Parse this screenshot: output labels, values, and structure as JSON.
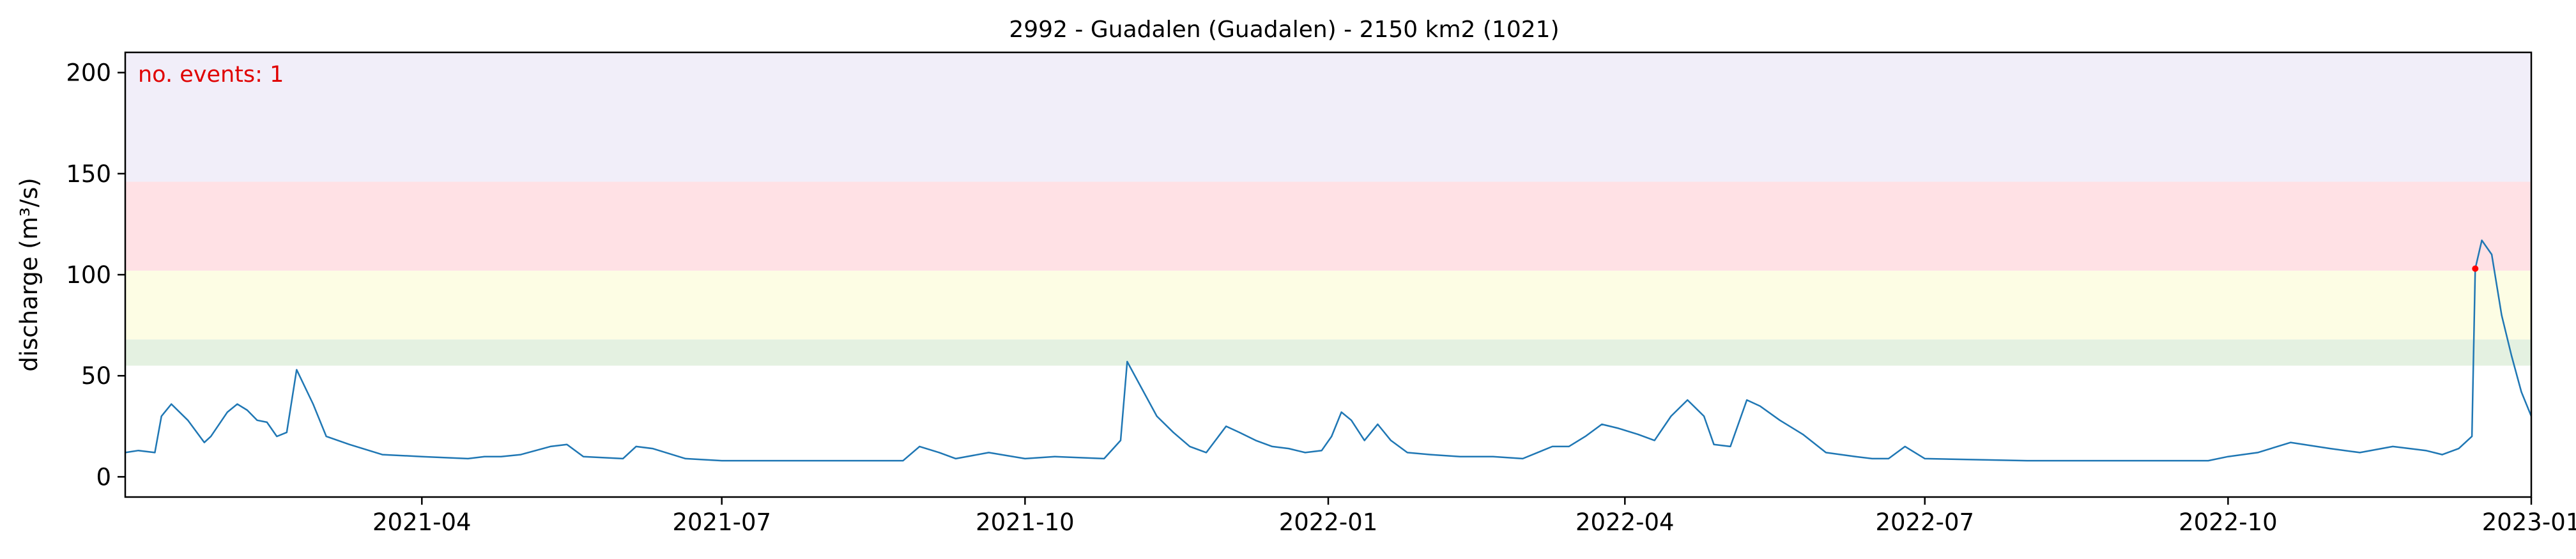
{
  "chart_data": {
    "type": "line",
    "title": "2992 - Guadalen (Guadalen) - 2150 km2 (1021)",
    "xlabel": "",
    "ylabel": "discharge (m³/s)",
    "x_range": [
      "2021-01-01",
      "2023-01-01"
    ],
    "ylim": [
      -10,
      210
    ],
    "yticks": [
      0,
      50,
      100,
      150,
      200
    ],
    "xticks": [
      "2021-04-01",
      "2021-07-01",
      "2021-10-01",
      "2022-01-01",
      "2022-04-01",
      "2022-07-01",
      "2022-10-01",
      "2023-01-01"
    ],
    "xtick_labels": [
      "2021-04",
      "2021-07",
      "2021-10",
      "2022-01",
      "2022-04",
      "2022-07",
      "2022-10",
      "2023-01"
    ],
    "grid": false,
    "annotation": "no. events: 1",
    "threshold_bands": [
      {
        "from": 55,
        "to": 68,
        "color": "#e4f1e1"
      },
      {
        "from": 68,
        "to": 102,
        "color": "#fdfde4"
      },
      {
        "from": 102,
        "to": 146,
        "color": "#ffe1e5"
      },
      {
        "from": 146,
        "to": 210,
        "color": "#f1eef9"
      }
    ],
    "line_color": "#1f77b4",
    "event_color": "#ff0000",
    "events": [
      {
        "x": "2022-12-15",
        "y": 103
      }
    ],
    "series": [
      {
        "x": [
          "2021-01-01",
          "2021-01-05",
          "2021-01-10",
          "2021-01-12",
          "2021-01-15",
          "2021-01-20",
          "2021-01-25",
          "2021-01-27",
          "2021-02-01",
          "2021-02-04",
          "2021-02-07",
          "2021-02-10",
          "2021-02-13",
          "2021-02-16",
          "2021-02-19",
          "2021-02-22",
          "2021-02-27",
          "2021-03-03",
          "2021-03-10",
          "2021-03-20",
          "2021-04-01",
          "2021-04-15",
          "2021-04-20",
          "2021-04-25",
          "2021-05-01",
          "2021-05-10",
          "2021-05-15",
          "2021-05-20",
          "2021-06-01",
          "2021-06-05",
          "2021-06-10",
          "2021-06-20",
          "2021-07-01",
          "2021-07-15",
          "2021-08-01",
          "2021-08-25",
          "2021-08-30",
          "2021-09-05",
          "2021-09-10",
          "2021-09-20",
          "2021-10-01",
          "2021-10-10",
          "2021-10-25",
          "2021-10-30",
          "2021-11-01",
          "2021-11-05",
          "2021-11-10",
          "2021-11-15",
          "2021-11-20",
          "2021-11-25",
          "2021-12-01",
          "2021-12-05",
          "2021-12-10",
          "2021-12-15",
          "2021-12-20",
          "2021-12-25",
          "2021-12-30",
          "2022-01-02",
          "2022-01-05",
          "2022-01-08",
          "2022-01-12",
          "2022-01-16",
          "2022-01-20",
          "2022-01-25",
          "2022-02-01",
          "2022-02-10",
          "2022-02-20",
          "2022-03-01",
          "2022-03-10",
          "2022-03-15",
          "2022-03-20",
          "2022-03-25",
          "2022-03-30",
          "2022-04-05",
          "2022-04-10",
          "2022-04-15",
          "2022-04-20",
          "2022-04-25",
          "2022-04-28",
          "2022-05-03",
          "2022-05-08",
          "2022-05-12",
          "2022-05-18",
          "2022-05-25",
          "2022-06-01",
          "2022-06-10",
          "2022-06-15",
          "2022-06-20",
          "2022-06-25",
          "2022-07-01",
          "2022-08-01",
          "2022-09-01",
          "2022-09-20",
          "2022-09-25",
          "2022-10-01",
          "2022-10-10",
          "2022-10-20",
          "2022-11-01",
          "2022-11-10",
          "2022-11-20",
          "2022-11-30",
          "2022-12-05",
          "2022-12-10",
          "2022-12-12",
          "2022-12-14",
          "2022-12-15",
          "2022-12-17",
          "2022-12-20",
          "2022-12-23",
          "2022-12-26",
          "2022-12-29",
          "2023-01-01"
        ],
        "y": [
          12,
          13,
          12,
          30,
          36,
          28,
          17,
          20,
          32,
          36,
          33,
          28,
          27,
          20,
          22,
          53,
          36,
          20,
          16,
          11,
          10,
          9,
          10,
          10,
          11,
          15,
          16,
          10,
          9,
          15,
          14,
          9,
          8,
          8,
          8,
          8,
          15,
          12,
          9,
          12,
          9,
          10,
          9,
          18,
          57,
          45,
          30,
          22,
          15,
          12,
          25,
          22,
          18,
          15,
          14,
          12,
          13,
          20,
          32,
          28,
          18,
          26,
          18,
          12,
          11,
          10,
          10,
          9,
          15,
          15,
          20,
          26,
          24,
          21,
          18,
          30,
          38,
          30,
          16,
          15,
          38,
          35,
          28,
          21,
          12,
          10,
          9,
          9,
          15,
          9,
          8,
          8,
          8,
          8,
          10,
          12,
          17,
          14,
          12,
          15,
          13,
          11,
          14,
          17,
          20,
          103,
          117,
          110,
          80,
          60,
          42,
          30
        ]
      }
    ]
  }
}
